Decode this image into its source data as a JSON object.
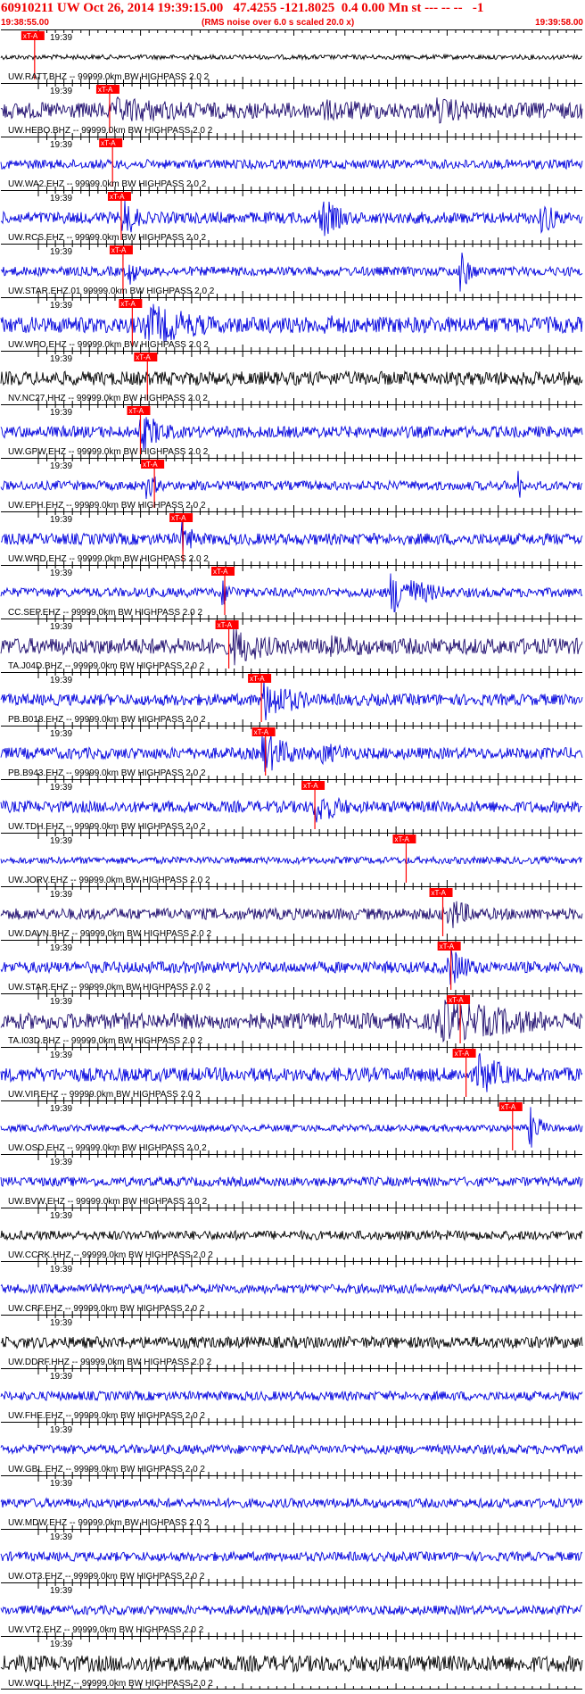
{
  "header": {
    "title": "60910211 UW Oct 26, 2014 19:39:15.00   47.4255 -121.8025  0.4 0.00 Mn st --- -- --   -1",
    "start_time": "19:38:55.00",
    "noise_note": "(RMS noise over 6.0 s scaled 20.0 x)",
    "end_time": "19:39:58.00"
  },
  "chart_data": {
    "type": "line",
    "title": "60910211 UW Oct 26, 2014 19:39:15.00   47.4255 -121.8025  0.4 0.00 Mn st --- -- --   -1",
    "x_start": "19:38:55.00",
    "x_end": "19:39:58.00",
    "tick_label": "19:39",
    "pick_label": "xT-A",
    "colors": {
      "blue": "#0000dd",
      "navy": "#1e0c6e",
      "black": "#000000",
      "pick": "#ff0000",
      "frame": "#000000"
    },
    "traces": [
      {
        "label": "UW.RATT.BHZ -- 99999.0km BW  HIGHPASS  2.0  2",
        "color": "black",
        "pick": 0.058,
        "amp": 0.1,
        "events": []
      },
      {
        "label": "UW.HEBO.BHZ -- 99999.0km BW  HIGHPASS  2.0  2",
        "color": "navy",
        "pick": 0.187,
        "amp": 0.35,
        "events": [
          [
            0.2,
            0.6,
            0.25
          ],
          [
            0.55,
            0.5,
            0.3
          ],
          [
            0.75,
            0.6,
            0.15
          ]
        ]
      },
      {
        "label": "UW.WA2.EHZ -- 99999.0km BW  HIGHPASS  2.0  2",
        "color": "blue",
        "pick": 0.192,
        "amp": 0.2,
        "events": []
      },
      {
        "label": "UW.RCS.EHZ -- 99999.0km BW  HIGHPASS  2.0  2",
        "color": "blue",
        "pick": 0.207,
        "amp": 0.25,
        "events": [
          [
            0.21,
            1.0,
            0.03
          ],
          [
            0.55,
            1.0,
            0.04
          ],
          [
            0.93,
            0.9,
            0.03
          ]
        ]
      },
      {
        "label": "UW.STAR.EHZ.01 99999.0km BW  HIGHPASS  2.0  2",
        "color": "blue",
        "pick": 0.21,
        "amp": 0.2,
        "events": [
          [
            0.22,
            0.7,
            0.02
          ],
          [
            0.79,
            1.0,
            0.02
          ]
        ]
      },
      {
        "label": "UW.WPO.EHZ -- 99999.0km BW  HIGHPASS  2.0  2",
        "color": "blue",
        "pick": 0.226,
        "amp": 0.35,
        "events": [
          [
            0.25,
            1.0,
            0.12
          ],
          [
            0.55,
            0.5,
            0.12
          ]
        ]
      },
      {
        "label": "NV.NC27.HHZ -- 99999.0km BW  HIGHPASS  2.0  2",
        "color": "black",
        "pick": 0.252,
        "amp": 0.3,
        "events": []
      },
      {
        "label": "UW.GPW.EHZ -- 99999.0km BW  HIGHPASS  2.0  2",
        "color": "blue",
        "pick": 0.24,
        "amp": 0.25,
        "events": [
          [
            0.24,
            0.9,
            0.05
          ]
        ]
      },
      {
        "label": "UW.EPH.EHZ -- 99999.0km BW  HIGHPASS  2.0  2",
        "color": "blue",
        "pick": 0.264,
        "amp": 0.2,
        "events": [
          [
            0.25,
            0.6,
            0.03
          ],
          [
            0.89,
            1.0,
            0.005
          ]
        ]
      },
      {
        "label": "UW.WRD.EHZ -- 99999.0km BW  HIGHPASS  2.0  2",
        "color": "blue",
        "pick": 0.313,
        "amp": 0.25,
        "events": [
          [
            0.31,
            0.8,
            0.03
          ]
        ]
      },
      {
        "label": "CC.SEP.EHZ -- 99999.0km BW  HIGHPASS  2.0  2",
        "color": "blue",
        "pick": 0.385,
        "amp": 0.2,
        "events": [
          [
            0.38,
            0.6,
            0.03
          ],
          [
            0.67,
            1.0,
            0.07
          ]
        ]
      },
      {
        "label": "TA.J04D.BHZ -- 99999.0km BW  HIGHPASS  2.0  2",
        "color": "navy",
        "pick": 0.392,
        "amp": 0.35,
        "events": [
          [
            0.4,
            0.9,
            0.08
          ],
          [
            0.55,
            0.5,
            0.3
          ]
        ]
      },
      {
        "label": "PB.B018.EHZ -- 99999.0km BW  HIGHPASS  2.0  2",
        "color": "blue",
        "pick": 0.448,
        "amp": 0.25,
        "events": [
          [
            0.45,
            1.0,
            0.07
          ]
        ]
      },
      {
        "label": "PB.B943.EHZ -- 99999.0km BW  HIGHPASS  2.0  2",
        "color": "blue",
        "pick": 0.455,
        "amp": 0.25,
        "events": [
          [
            0.45,
            1.0,
            0.06
          ],
          [
            0.55,
            0.5,
            0.1
          ]
        ]
      },
      {
        "label": "UW.TDH.EHZ -- 99999.0km BW  HIGHPASS  2.0  2",
        "color": "blue",
        "pick": 0.54,
        "amp": 0.25,
        "events": [
          [
            0.54,
            0.8,
            0.06
          ]
        ]
      },
      {
        "label": "UW.JORV.EHZ -- 99999.0km BW  HIGHPASS  2.0  2",
        "color": "blue",
        "pick": 0.697,
        "amp": 0.15,
        "events": []
      },
      {
        "label": "UW.DAVN.BHZ -- 99999.0km BW  HIGHPASS  2.0  2",
        "color": "navy",
        "pick": 0.76,
        "amp": 0.25,
        "events": [
          [
            0.77,
            0.8,
            0.05
          ]
        ]
      },
      {
        "label": "UW.STAR.EHZ -- 99999.0km BW  HIGHPASS  2.0  2",
        "color": "blue",
        "pick": 0.774,
        "amp": 0.25,
        "events": [
          [
            0.77,
            1.0,
            0.04
          ]
        ]
      },
      {
        "label": "TA.I03D.BHZ -- 99999.0km BW  HIGHPASS  2.0  2",
        "color": "navy",
        "pick": 0.79,
        "amp": 0.35,
        "events": [
          [
            0.75,
            1.0,
            0.22
          ]
        ]
      },
      {
        "label": "UW.VIP.EHZ -- 99999.0km BW  HIGHPASS  2.0  2",
        "color": "blue",
        "pick": 0.8,
        "amp": 0.3,
        "events": [
          [
            0.82,
            1.0,
            0.06
          ]
        ]
      },
      {
        "label": "UW.OSD.EHZ -- 99999.0km BW  HIGHPASS  2.0  2",
        "color": "blue",
        "pick": 0.88,
        "amp": 0.15,
        "events": [
          [
            0.91,
            1.0,
            0.02
          ]
        ]
      },
      {
        "label": "UW.BVW.EHZ -- 99999.0km BW  HIGHPASS  2.0  2",
        "color": "blue",
        "pick": null,
        "amp": 0.2,
        "events": []
      },
      {
        "label": "UW.CCRK.HHZ -- 99999.0km BW  HIGHPASS  2.0  2",
        "color": "black",
        "pick": null,
        "amp": 0.2,
        "events": []
      },
      {
        "label": "UW.CRF.EHZ -- 99999.0km BW  HIGHPASS  2.0  2",
        "color": "blue",
        "pick": null,
        "amp": 0.2,
        "events": []
      },
      {
        "label": "UW.DDRF.HHZ -- 99999.0km BW  HIGHPASS  2.0  2",
        "color": "black",
        "pick": null,
        "amp": 0.25,
        "events": []
      },
      {
        "label": "UW.FHE.EHZ -- 99999.0km BW  HIGHPASS  2.0  2",
        "color": "blue",
        "pick": null,
        "amp": 0.2,
        "events": []
      },
      {
        "label": "UW.GBL.EHZ -- 99999.0km BW  HIGHPASS  2.0  2",
        "color": "blue",
        "pick": null,
        "amp": 0.2,
        "events": []
      },
      {
        "label": "UW.MDW.EHZ -- 99999.0km BW  HIGHPASS  2.0  2",
        "color": "blue",
        "pick": null,
        "amp": 0.2,
        "events": []
      },
      {
        "label": "UW.OT3.EHZ -- 99999.0km BW  HIGHPASS  2.0  2",
        "color": "blue",
        "pick": null,
        "amp": 0.2,
        "events": []
      },
      {
        "label": "UW.VT2.EHZ -- 99999.0km BW  HIGHPASS  2.0  2",
        "color": "blue",
        "pick": null,
        "amp": 0.2,
        "events": []
      },
      {
        "label": "UW.WOLL.HHZ -- 99999.0km BW  HIGHPASS  2.0  2",
        "color": "black",
        "pick": null,
        "amp": 0.35,
        "events": []
      }
    ]
  }
}
